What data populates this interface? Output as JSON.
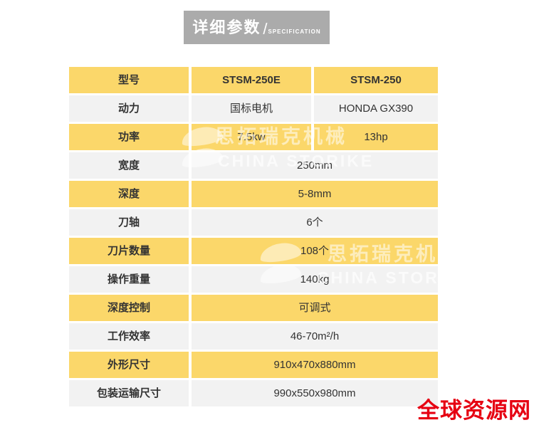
{
  "banner": {
    "title": "详细参数",
    "separator": "/",
    "subtitle": "SPECIFICATION"
  },
  "table": {
    "rows": [
      {
        "label": "型号",
        "value1": "STSM-250E",
        "value2": "STSM-250"
      },
      {
        "label": "动力",
        "value1": "国标电机",
        "value2": "HONDA GX390"
      },
      {
        "label": "功率",
        "value1": "7.5kw",
        "value2": "13hp"
      },
      {
        "label": "宽度",
        "value": "250mm"
      },
      {
        "label": "深度",
        "value": "5-8mm"
      },
      {
        "label": "刀轴",
        "value": "6个"
      },
      {
        "label": "刀片数量",
        "value": "108个"
      },
      {
        "label": "操作重量",
        "value": "140kg"
      },
      {
        "label": "深度控制",
        "value": "可调式"
      },
      {
        "label": "工作效率",
        "value": "46-70m²/h"
      },
      {
        "label": "外形尺寸",
        "value": "910x470x880mm"
      },
      {
        "label": "包装运输尺寸",
        "value": "990x550x980mm"
      }
    ]
  },
  "watermark": {
    "cn": "思拓瑞克机械",
    "en": "CHINA STORIKE"
  },
  "logo": {
    "text": "全球资源网"
  },
  "colors": {
    "row_yellow": "#fbd76a",
    "row_gray": "#f2f2f2",
    "banner_gray": "#ababab",
    "logo_red": "#e60012"
  }
}
